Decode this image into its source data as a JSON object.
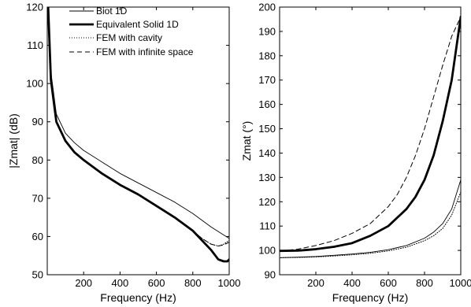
{
  "chart_data": [
    {
      "type": "line",
      "title": "",
      "xlabel": "Frequency (Hz)",
      "ylabel": "|Zmat| (dB)",
      "xlim": [
        0,
        1000
      ],
      "ylim": [
        50,
        120
      ],
      "xticks": [
        200,
        400,
        600,
        800,
        1000
      ],
      "yticks": [
        50,
        60,
        70,
        80,
        90,
        100,
        110,
        120
      ],
      "grid": false,
      "legend_position": "top-right",
      "series": [
        {
          "name": "Biot 1D",
          "style": "thin-solid",
          "x": [
            5,
            20,
            50,
            100,
            150,
            200,
            300,
            400,
            500,
            600,
            700,
            800,
            900,
            950,
            1000
          ],
          "y": [
            120,
            103,
            92,
            87,
            84.5,
            82.5,
            79.5,
            76.5,
            74,
            71.5,
            69,
            66,
            62.5,
            61,
            59.5
          ]
        },
        {
          "name": "Equivalent Solid 1D",
          "style": "thick-solid",
          "x": [
            5,
            20,
            50,
            100,
            150,
            200,
            300,
            400,
            500,
            600,
            700,
            800,
            850,
            900,
            940,
            970,
            990,
            1000
          ],
          "y": [
            120,
            101,
            90,
            85,
            82,
            80,
            76.5,
            73.5,
            71,
            68,
            65,
            61.5,
            59,
            56.5,
            54,
            53.5,
            53.5,
            54
          ]
        },
        {
          "name": "FEM with cavity",
          "style": "dotted",
          "x": [
            5,
            20,
            50,
            100,
            150,
            200,
            300,
            400,
            500,
            600,
            700,
            800,
            850,
            900,
            940,
            970,
            1000
          ],
          "y": [
            120,
            101,
            90,
            85,
            82,
            80,
            76.5,
            73.5,
            71,
            68,
            65,
            61.5,
            59.5,
            58,
            57.5,
            58,
            59
          ]
        },
        {
          "name": "FEM with infinite space",
          "style": "dashed",
          "x": [
            5,
            20,
            50,
            100,
            150,
            200,
            300,
            400,
            500,
            600,
            700,
            800,
            850,
            900,
            940,
            970,
            1000
          ],
          "y": [
            120,
            101,
            90,
            85,
            82,
            80,
            76.5,
            73.5,
            71,
            68,
            65,
            61.5,
            59.5,
            58,
            57.5,
            57.8,
            58.5
          ]
        }
      ]
    },
    {
      "type": "line",
      "title": "",
      "xlabel": "Frequency (Hz)",
      "ylabel": "Zmat (°)",
      "xlim": [
        0,
        1000
      ],
      "ylim": [
        90,
        200
      ],
      "xticks": [
        200,
        400,
        600,
        800,
        1000
      ],
      "yticks": [
        90,
        100,
        110,
        120,
        130,
        140,
        150,
        160,
        170,
        180,
        190,
        200
      ],
      "grid": false,
      "series": [
        {
          "style": "thin-solid",
          "x": [
            5,
            100,
            200,
            300,
            400,
            500,
            600,
            700,
            800,
            850,
            900,
            950,
            1000
          ],
          "y": [
            97,
            97.2,
            97.5,
            98,
            98.5,
            99.2,
            100.3,
            102,
            105,
            107.5,
            111,
            117,
            129
          ]
        },
        {
          "style": "thick-solid",
          "x": [
            5,
            100,
            200,
            300,
            400,
            500,
            600,
            700,
            750,
            800,
            850,
            900,
            950,
            1000
          ],
          "y": [
            99.8,
            99.9,
            100.5,
            101.5,
            103,
            106,
            110,
            117,
            122,
            129,
            139,
            153,
            170,
            196
          ]
        },
        {
          "style": "dotted",
          "x": [
            5,
            100,
            200,
            300,
            400,
            500,
            600,
            700,
            800,
            850,
            900,
            950,
            1000
          ],
          "y": [
            97,
            97.1,
            97.3,
            97.7,
            98.2,
            98.8,
            99.8,
            101.3,
            104,
            106,
            109,
            114.5,
            124
          ]
        },
        {
          "style": "dashed",
          "x": [
            5,
            100,
            200,
            300,
            400,
            500,
            600,
            650,
            700,
            750,
            800,
            850,
            900,
            950,
            1000
          ],
          "y": [
            99.8,
            100.5,
            102,
            104,
            107,
            111,
            118,
            123,
            130,
            139,
            150,
            163,
            176,
            188,
            196
          ]
        }
      ]
    }
  ]
}
